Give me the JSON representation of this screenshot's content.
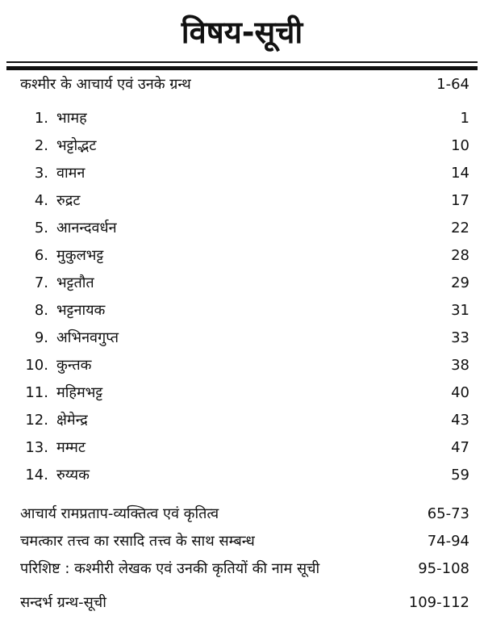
{
  "title": "विषय-सूची",
  "sections": [
    {
      "label": "कश्मीर के आचार्य एवं उनके ग्रन्थ",
      "page": "1-64",
      "items": [
        {
          "num": "1.",
          "label": "भामह",
          "page": "1"
        },
        {
          "num": "2.",
          "label": "भट्टोद्भट",
          "page": "10"
        },
        {
          "num": "3.",
          "label": "वामन",
          "page": "14"
        },
        {
          "num": "4.",
          "label": "रुद्रट",
          "page": "17"
        },
        {
          "num": "5.",
          "label": "आनन्दवर्धन",
          "page": "22"
        },
        {
          "num": "6.",
          "label": "मुकुलभट्ट",
          "page": "28"
        },
        {
          "num": "7.",
          "label": "भट्टतौत",
          "page": "29"
        },
        {
          "num": "8.",
          "label": "भट्टनायक",
          "page": "31"
        },
        {
          "num": "9.",
          "label": "अभिनवगुप्त",
          "page": "33"
        },
        {
          "num": "10.",
          "label": "कुन्तक",
          "page": "38"
        },
        {
          "num": "11.",
          "label": "महिमभट्ट",
          "page": "40"
        },
        {
          "num": "12.",
          "label": "क्षेमेन्द्र",
          "page": "43"
        },
        {
          "num": "13.",
          "label": "मम्मट",
          "page": "47"
        },
        {
          "num": "14.",
          "label": "रुय्यक",
          "page": "59"
        }
      ]
    },
    {
      "label": "आचार्य रामप्रताप-व्यक्तित्व एवं कृतित्व",
      "page": "65-73"
    },
    {
      "label": "चमत्कार तत्त्व का रसादि तत्त्व के साथ सम्बन्ध",
      "page": "74-94"
    },
    {
      "label": "परिशिष्ट : कश्मीरी लेखक एवं उनकी कृतियों की नाम सूची",
      "page": "95-108"
    },
    {
      "label": "सन्दर्भ ग्रन्थ-सूची",
      "page": "109-112"
    }
  ]
}
